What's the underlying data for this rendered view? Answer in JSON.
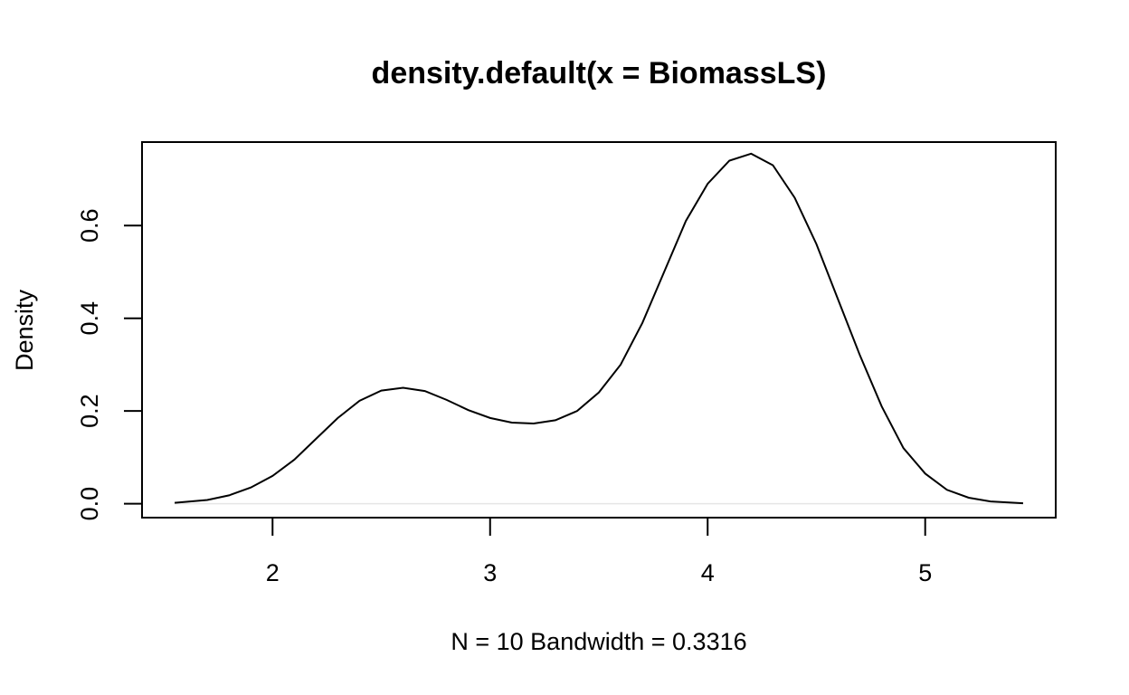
{
  "chart_data": {
    "type": "line",
    "title": "density.default(x = BiomassLS)",
    "xlabel": "N = 10   Bandwidth = 0.3316",
    "ylabel": "Density",
    "xlim": [
      1.4,
      5.6
    ],
    "ylim": [
      -0.03,
      0.78
    ],
    "x_ticks": [
      2,
      3,
      4,
      5
    ],
    "x_tick_labels": [
      "2",
      "3",
      "4",
      "5"
    ],
    "y_ticks": [
      0.0,
      0.2,
      0.4,
      0.6
    ],
    "y_tick_labels": [
      "0.0",
      "0.2",
      "0.4",
      "0.6"
    ],
    "grid": false,
    "legend": "none",
    "series": [
      {
        "x": [
          1.55,
          1.7,
          1.8,
          1.9,
          2.0,
          2.1,
          2.2,
          2.3,
          2.4,
          2.5,
          2.6,
          2.7,
          2.8,
          2.9,
          3.0,
          3.1,
          3.2,
          3.3,
          3.4,
          3.5,
          3.6,
          3.7,
          3.8,
          3.9,
          4.0,
          4.1,
          4.2,
          4.3,
          4.4,
          4.5,
          4.6,
          4.7,
          4.8,
          4.9,
          5.0,
          5.1,
          5.2,
          5.3,
          5.45
        ],
        "values": [
          0.002,
          0.008,
          0.018,
          0.035,
          0.06,
          0.095,
          0.14,
          0.185,
          0.222,
          0.244,
          0.25,
          0.243,
          0.224,
          0.202,
          0.185,
          0.175,
          0.173,
          0.18,
          0.2,
          0.24,
          0.3,
          0.39,
          0.5,
          0.61,
          0.69,
          0.74,
          0.755,
          0.73,
          0.66,
          0.56,
          0.44,
          0.32,
          0.21,
          0.12,
          0.065,
          0.03,
          0.013,
          0.005,
          0.001
        ]
      }
    ]
  }
}
